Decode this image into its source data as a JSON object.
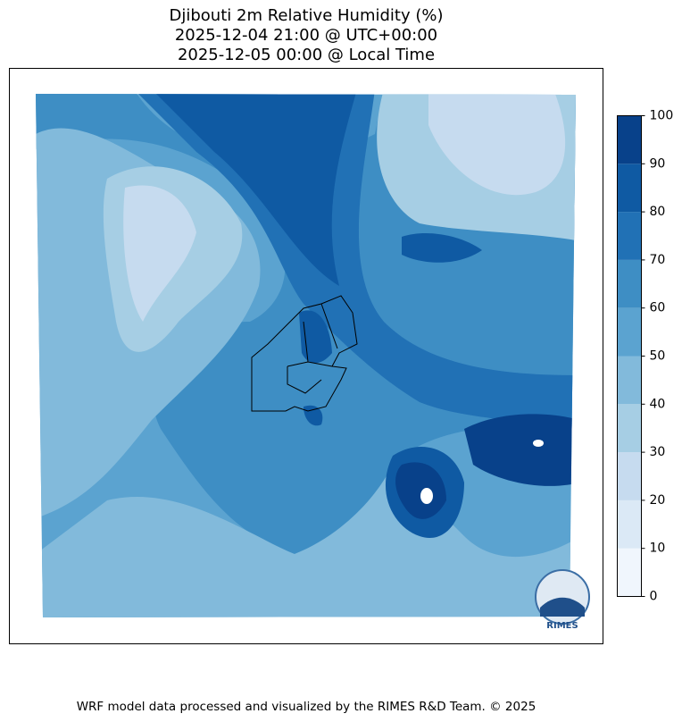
{
  "title": [
    "Djibouti 2m Relative Humidity (%)",
    "2025-12-04 21:00 @ UTC+00:00",
    "2025-12-05 00:00 @ Local Time"
  ],
  "colorbar": {
    "ticks": [
      0,
      10,
      20,
      30,
      40,
      50,
      60,
      70,
      80,
      90,
      100
    ],
    "colors": [
      "#f0f6fd",
      "#dbe9f6",
      "#c6dbef",
      "#a6cee4",
      "#82badb",
      "#5ba3d0",
      "#3e8ec4",
      "#2171b5",
      "#0f5aa3",
      "#08418a"
    ]
  },
  "logo": "RIMES",
  "footer": "WRF model data processed and visualized by the RIMES R&D Team. © 2025"
}
